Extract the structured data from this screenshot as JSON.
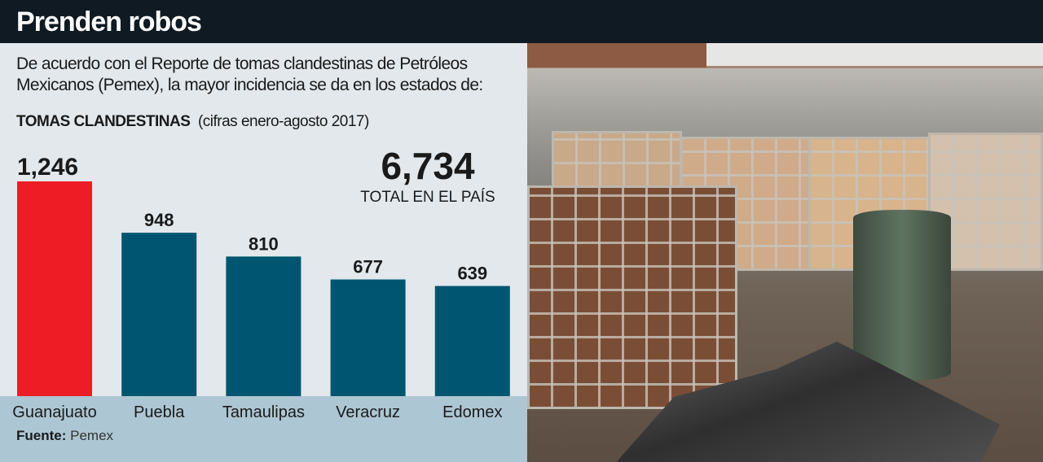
{
  "title": "Prenden robos",
  "intro": "De acuerdo con el Reporte de tomas clandestinas de Petróleos Mexicanos (Pemex), la mayor incidencia se da en los estados de:",
  "subtitle_bold": "TOMAS CLANDESTINAS",
  "subtitle_note": "(cifras enero-agosto 2017)",
  "total": {
    "value": "6,734",
    "label": "TOTAL EN EL PAÍS"
  },
  "source": {
    "label": "Fuente:",
    "value": "Pemex"
  },
  "colors": {
    "highlight": "#ee1c25",
    "bar": "#005670",
    "header": "#0f1a22",
    "panel": "#e3e8ec",
    "band": "#adc6d3"
  },
  "chart_data": {
    "type": "bar",
    "categories": [
      "Guanajuato",
      "Puebla",
      "Tamaulipas",
      "Veracruz",
      "Edomex"
    ],
    "values": [
      1246,
      948,
      810,
      677,
      639
    ],
    "value_labels": [
      "1,246",
      "948",
      "810",
      "677",
      "639"
    ],
    "highlight_index": 0,
    "grid": false
  }
}
